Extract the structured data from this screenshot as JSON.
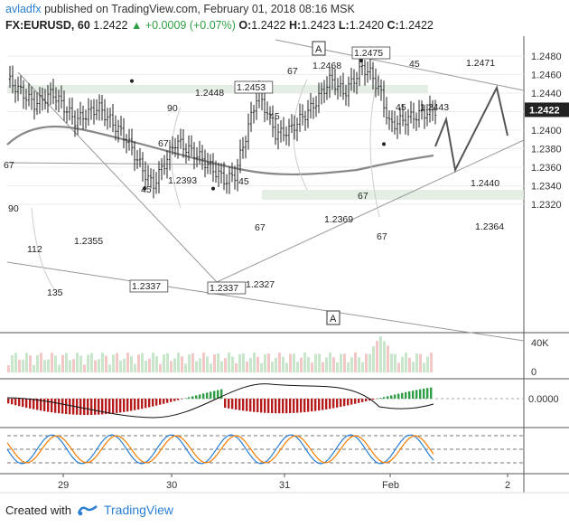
{
  "header": {
    "author": "avladfx",
    "published": "published on TradingView.com, February 01, 2018 08:16 MSK",
    "symbol": "FX:EURUSD, 60",
    "price": "1.2422",
    "change": "▲ +0.0009 (+0.07%)",
    "o_label": "O:",
    "o": "1.2422",
    "h_label": "H:",
    "h": "1.2423",
    "l_label": "L:",
    "l": "1.2420",
    "c_label": "C:",
    "c": "1.2422"
  },
  "footer": {
    "created_with": "Created with",
    "brand": "TradingView",
    "icon": "tradingview-logo-icon"
  },
  "colors": {
    "up": "#2e9e44",
    "down": "#b71c1c",
    "price": "#222222",
    "ma": "#888888",
    "accent": "#2a7fd4",
    "stoch_k": "#2a7fd4",
    "stoch_d": "#f57c00"
  },
  "chart_data": [
    {
      "type": "candlestick",
      "x_ticks": [
        "29",
        "30",
        "31",
        "Feb",
        "2"
      ],
      "y_ticks": [
        "1.2480",
        "1.2460",
        "1.2440",
        "1.2420",
        "1.2400",
        "1.2380",
        "1.2360",
        "1.2340",
        "1.2320"
      ],
      "ylim": [
        1.2312,
        1.2492
      ],
      "current_price": "1.2422",
      "price_labels": [
        {
          "text": "1.2448",
          "boxed": false
        },
        {
          "text": "1.2453",
          "boxed": true
        },
        {
          "text": "1.2468",
          "boxed": false
        },
        {
          "text": "1.2475",
          "boxed": true
        },
        {
          "text": "1.2471",
          "boxed": false
        },
        {
          "text": "1.2443",
          "boxed": false
        },
        {
          "text": "1.2440",
          "boxed": false
        },
        {
          "text": "1.2393",
          "boxed": false
        },
        {
          "text": "1.2369",
          "boxed": false
        },
        {
          "text": "1.2364",
          "boxed": false
        },
        {
          "text": "1.2355",
          "boxed": false
        },
        {
          "text": "1.2337",
          "boxed": true
        },
        {
          "text": "1.2337",
          "boxed": true
        },
        {
          "text": "1.2327",
          "boxed": false
        }
      ],
      "angle_labels": [
        "67",
        "90",
        "67",
        "45",
        "112",
        "135",
        "90",
        "45",
        "45",
        "67",
        "67",
        "45",
        "67",
        "45",
        "67"
      ],
      "pattern_labels": [
        "A",
        "A"
      ]
    },
    {
      "type": "bar",
      "name": "volume",
      "y_ticks": [
        "40K",
        "0"
      ]
    },
    {
      "type": "bar",
      "name": "macd",
      "y_ticks": [
        "0.0000"
      ]
    },
    {
      "type": "line",
      "name": "stochastic"
    }
  ]
}
